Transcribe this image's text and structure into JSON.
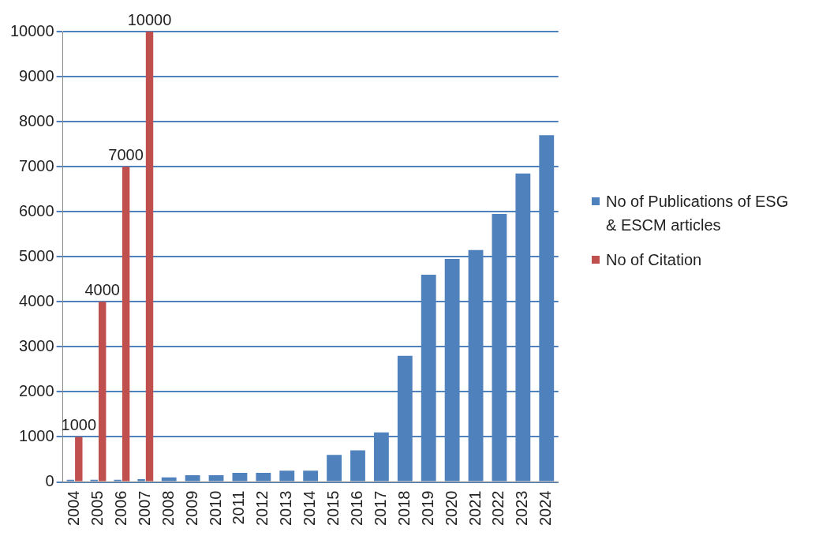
{
  "chart_data": {
    "type": "bar",
    "categories": [
      "2004",
      "2005",
      "2006",
      "2007",
      "2008",
      "2009",
      "2010",
      "2011",
      "2012",
      "2013",
      "2014",
      "2015",
      "2016",
      "2017",
      "2018",
      "2019",
      "2020",
      "2021",
      "2022",
      "2023",
      "2024"
    ],
    "series": [
      {
        "name": "No of Publications of ESG & ESCM articles",
        "color": "#4f81bd",
        "values": [
          50,
          50,
          50,
          60,
          100,
          150,
          150,
          200,
          200,
          250,
          250,
          600,
          700,
          1100,
          2800,
          4600,
          4950,
          5150,
          5950,
          6850,
          7700
        ]
      },
      {
        "name": "No of Citation",
        "color": "#c0504d",
        "values": [
          1000,
          4000,
          7000,
          10000,
          null,
          null,
          null,
          null,
          null,
          null,
          null,
          null,
          null,
          null,
          null,
          null,
          null,
          null,
          null,
          null,
          null
        ],
        "value_labels": [
          "1000",
          "4000",
          "7000",
          "10000",
          null,
          null,
          null,
          null,
          null,
          null,
          null,
          null,
          null,
          null,
          null,
          null,
          null,
          null,
          null,
          null,
          null
        ]
      }
    ],
    "ylim": [
      0,
      10000
    ],
    "yticks": [
      0,
      1000,
      2000,
      3000,
      4000,
      5000,
      6000,
      7000,
      8000,
      9000,
      10000
    ],
    "grid": "y",
    "legend": "right"
  }
}
